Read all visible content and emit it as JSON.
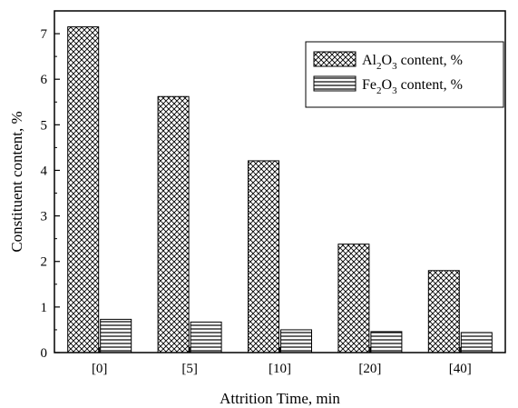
{
  "chart_data": {
    "type": "bar",
    "categories": [
      "[0]",
      "[5]",
      "[10]",
      "[20]",
      "[40]"
    ],
    "series": [
      {
        "name": "Al2O3 content, %",
        "values": [
          7.15,
          5.62,
          4.21,
          2.38,
          1.8
        ],
        "pattern": "crosshatch"
      },
      {
        "name": "Fe2O3 content, %",
        "values": [
          0.73,
          0.67,
          0.5,
          0.46,
          0.44
        ],
        "pattern": "horizontal-lines"
      }
    ],
    "xlabel": "Attrition Time, min",
    "ylabel": "Constituent content, %",
    "ylim": [
      0,
      7.5
    ],
    "yticks": [
      0,
      1,
      2,
      3,
      4,
      5,
      6,
      7
    ],
    "grid": false,
    "legend_position": "top-right",
    "legend": [
      {
        "base": "Al",
        "sub1": "2",
        "mid": "O",
        "sub2": "3",
        "rest": " content, %"
      },
      {
        "base": "Fe",
        "sub1": "2",
        "mid": "O",
        "sub2": "3",
        "rest": " content, %"
      }
    ]
  }
}
